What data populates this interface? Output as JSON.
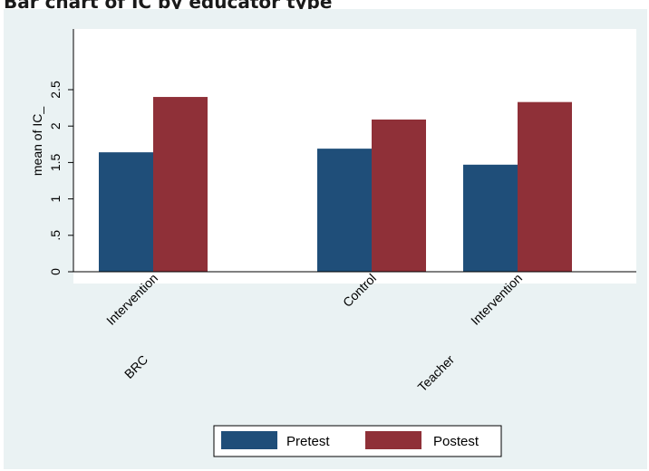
{
  "page": {
    "title": "Bar chart of IC by educator type"
  },
  "chart_data": {
    "type": "bar",
    "title": "Bar chart of IC by educator type",
    "ylabel": "mean of IC_",
    "xlabel": "",
    "ylim": [
      0,
      2.6
    ],
    "yticks": [
      {
        "value": 0,
        "label": "0"
      },
      {
        "value": 0.5,
        "label": ".5"
      },
      {
        "value": 1,
        "label": "1"
      },
      {
        "value": 1.5,
        "label": "1.5"
      },
      {
        "value": 2,
        "label": "2"
      },
      {
        "value": 2.5,
        "label": "2.5"
      }
    ],
    "groups": [
      {
        "name": "BRC",
        "categories": [
          "Intervention"
        ]
      },
      {
        "name": "Teacher",
        "categories": [
          "Control",
          "Intervention"
        ]
      }
    ],
    "categories": [
      "Intervention",
      "Control",
      "Intervention"
    ],
    "series": [
      {
        "name": "Pretest",
        "color": "#1f4e79",
        "values": [
          1.64,
          1.69,
          1.47
        ]
      },
      {
        "name": "Postest",
        "color": "#8f3038",
        "values": [
          2.4,
          2.09,
          2.33
        ]
      }
    ],
    "grid": false,
    "legend_position": "bottom-center",
    "plot_background": "#ffffff",
    "figure_background": "#eaf2f3"
  }
}
